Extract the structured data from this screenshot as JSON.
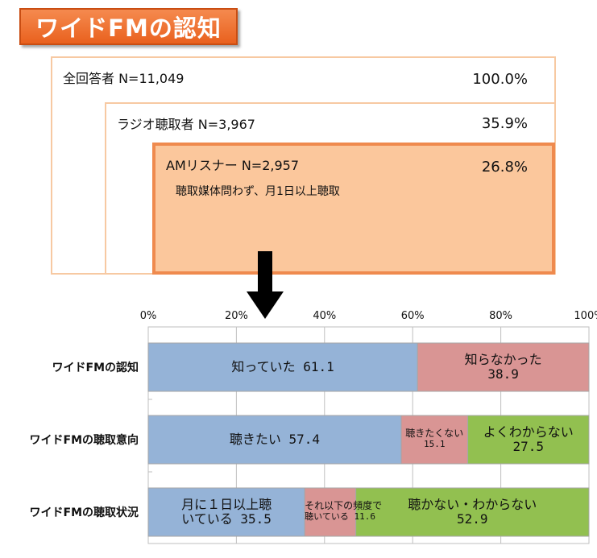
{
  "title": "ワイドFMの認知",
  "population": {
    "all": {
      "label": "全回答者 N=11,049",
      "pct": "100.0%"
    },
    "radio": {
      "label": "ラジオ聴取者 N=3,967",
      "pct": "35.9%"
    },
    "am": {
      "label": "AMリスナー N=2,957",
      "sub": "聴取媒体問わず、月1日以上聴取",
      "pct": "26.8%"
    }
  },
  "colors": {
    "blue": "#95b3d7",
    "pink": "#d99594",
    "green": "#92c050",
    "orange": "#ef8a4e",
    "peach": "#fbc79c"
  },
  "chart_data": {
    "type": "bar",
    "orientation": "horizontal-stacked",
    "xlim": [
      0,
      100
    ],
    "ticks": [
      "0%",
      "20%",
      "40%",
      "60%",
      "80%",
      "100%"
    ],
    "rows": [
      {
        "label": "ワイドFMの認知",
        "segments": [
          {
            "lines": [
              "知っていた 61.1"
            ],
            "value": 61.1,
            "color": "#95b3d7"
          },
          {
            "lines": [
              "知らなかった",
              "38.9"
            ],
            "value": 38.9,
            "color": "#d99594"
          }
        ]
      },
      {
        "label": "ワイドFMの聴取意向",
        "segments": [
          {
            "lines": [
              "聴きたい 57.4"
            ],
            "value": 57.4,
            "color": "#95b3d7"
          },
          {
            "lines": [
              "聴きたくない",
              "15.1"
            ],
            "value": 15.1,
            "color": "#d99594",
            "small": true
          },
          {
            "lines": [
              "よくわからない",
              "27.5"
            ],
            "value": 27.5,
            "color": "#92c050"
          }
        ]
      },
      {
        "label": "ワイドFMの聴取状況",
        "segments": [
          {
            "lines": [
              "月に１日以上聴",
              "いている 35.5"
            ],
            "value": 35.5,
            "color": "#95b3d7"
          },
          {
            "lines": [
              "それ以下の頻度で",
              "聴いている 11.6"
            ],
            "value": 11.6,
            "color": "#d99594",
            "small": true
          },
          {
            "lines": [
              "聴かない・わからない",
              "52.9"
            ],
            "value": 52.9,
            "color": "#92c050"
          }
        ]
      }
    ]
  }
}
